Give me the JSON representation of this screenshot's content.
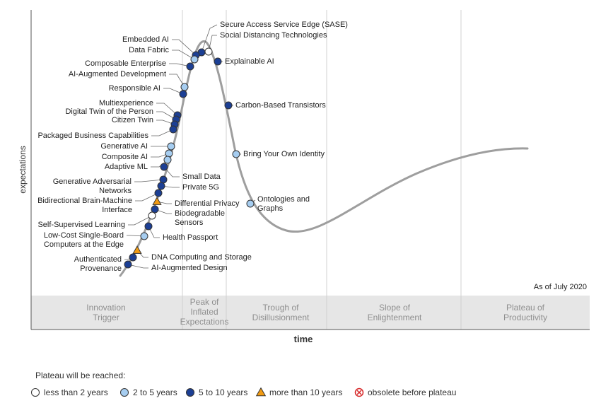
{
  "chart_data": {
    "type": "scatter",
    "title": "",
    "xlabel": "time",
    "ylabel": "expectations",
    "as_of": "As of July 2020",
    "phases": [
      [
        "Innovation",
        "Trigger"
      ],
      [
        "Peak of",
        "Inflated",
        "Expectations"
      ],
      [
        "Trough of",
        "Disillusionment"
      ],
      [
        "Slope of",
        "Enlightenment"
      ],
      [
        "Plateau of",
        "Productivity"
      ]
    ],
    "legend_title": "Plateau will be reached:",
    "legend": [
      {
        "key": "lt2",
        "label": "less than 2 years"
      },
      {
        "key": "2to5",
        "label": "2 to 5 years"
      },
      {
        "key": "5to10",
        "label": "5 to 10 years"
      },
      {
        "key": "gt10",
        "label": "more than 10 years"
      },
      {
        "key": "obsolete",
        "label": "obsolete before plateau"
      }
    ],
    "colors": {
      "lt2": "#ffffff",
      "2to5": "#a6cdf0",
      "5to10": "#1c3f94",
      "gt10": "#f29b13",
      "obsolete": "#d62728",
      "curve": "#9e9e9e",
      "phase_band": "#e6e6e6"
    },
    "technologies": [
      {
        "name": [
          "Secure Access Service Edge (SASE)"
        ],
        "plateau": "5to10"
      },
      {
        "name": [
          "Social Distancing Technologies"
        ],
        "plateau": "lt2"
      },
      {
        "name": [
          "Explainable AI"
        ],
        "plateau": "5to10"
      },
      {
        "name": [
          "Carbon-Based Transistors"
        ],
        "plateau": "5to10"
      },
      {
        "name": [
          "Bring Your Own Identity"
        ],
        "plateau": "2to5"
      },
      {
        "name": [
          "Ontologies and",
          "Graphs"
        ],
        "plateau": "2to5"
      },
      {
        "name": [
          "Embedded AI"
        ],
        "plateau": "5to10"
      },
      {
        "name": [
          "Data Fabric"
        ],
        "plateau": "2to5"
      },
      {
        "name": [
          "Composable Enterprise"
        ],
        "plateau": "5to10"
      },
      {
        "name": [
          "AI-Augmented Development"
        ],
        "plateau": "2to5"
      },
      {
        "name": [
          "Responsible AI"
        ],
        "plateau": "5to10"
      },
      {
        "name": [
          "Multiexperience"
        ],
        "plateau": "5to10"
      },
      {
        "name": [
          "Digital Twin of the Person"
        ],
        "plateau": "5to10"
      },
      {
        "name": [
          "Citizen Twin"
        ],
        "plateau": "5to10"
      },
      {
        "name": [
          "Packaged Business Capabilities"
        ],
        "plateau": "5to10"
      },
      {
        "name": [
          "Generative AI"
        ],
        "plateau": "2to5"
      },
      {
        "name": [
          "Composite AI"
        ],
        "plateau": "2to5"
      },
      {
        "name": [
          "Adaptive ML"
        ],
        "plateau": "2to5"
      },
      {
        "name": [
          "Small Data"
        ],
        "plateau": "5to10"
      },
      {
        "name": [
          "Generative Adversarial",
          "Networks"
        ],
        "plateau": "5to10"
      },
      {
        "name": [
          "Private 5G"
        ],
        "plateau": "5to10"
      },
      {
        "name": [
          "Bidirectional Brain-Machine",
          "Interface"
        ],
        "plateau": "5to10"
      },
      {
        "name": [
          "Differential Privacy"
        ],
        "plateau": "gt10"
      },
      {
        "name": [
          "Biodegradable",
          "Sensors"
        ],
        "plateau": "5to10"
      },
      {
        "name": [
          "Self-Supervised Learning"
        ],
        "plateau": "lt2"
      },
      {
        "name": [
          "Health Passport"
        ],
        "plateau": "5to10"
      },
      {
        "name": [
          "Low-Cost Single-Board",
          "Computers at the Edge"
        ],
        "plateau": "2to5"
      },
      {
        "name": [
          "DNA Computing and Storage"
        ],
        "plateau": "gt10"
      },
      {
        "name": [
          "Authenticated",
          "Provenance"
        ],
        "plateau": "5to10"
      },
      {
        "name": [
          "AI-Augmented Design"
        ],
        "plateau": "5to10"
      }
    ]
  }
}
